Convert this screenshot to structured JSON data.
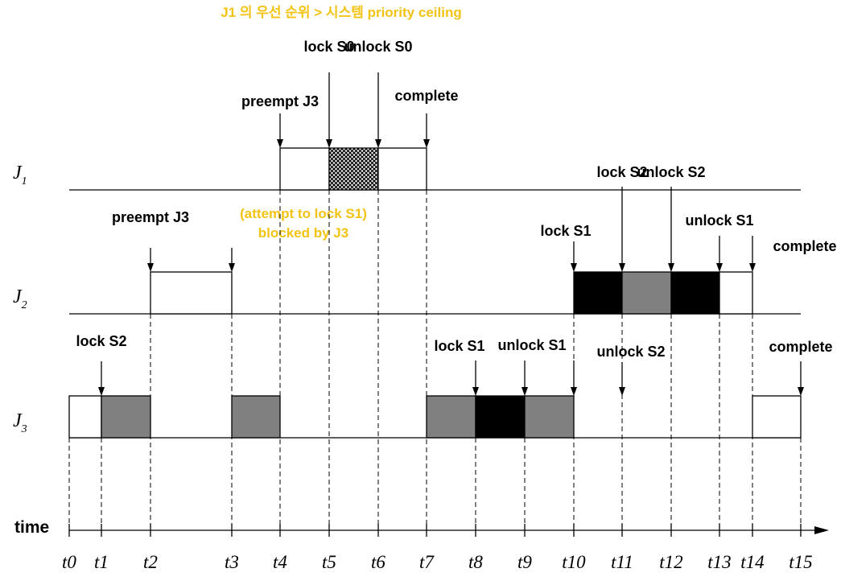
{
  "header_note": "J1 의 우선 순위 > 시스템 priority ceiling",
  "blocked_note": [
    "(attempt to lock S1)",
    "blocked by J3"
  ],
  "jobs": [
    {
      "name": "J",
      "sub": "1"
    },
    {
      "name": "J",
      "sub": "2"
    },
    {
      "name": "J",
      "sub": "3"
    }
  ],
  "time_label": "time",
  "ticks": [
    "t0",
    "t1",
    "t2",
    "t3",
    "t4",
    "t5",
    "t6",
    "t7",
    "t8",
    "t9",
    "t10",
    "t11",
    "t12",
    "t13",
    "t14",
    "t15"
  ],
  "colors": {
    "lock_s2": "#808080",
    "lock_s1": "#000000",
    "lock_s0": "crosshatch",
    "note": "#f2c314"
  },
  "segments": [
    {
      "job": "J1",
      "from": 4,
      "to": 5,
      "fill": "white"
    },
    {
      "job": "J1",
      "from": 5,
      "to": 6,
      "fill": "crosshatch"
    },
    {
      "job": "J1",
      "from": 6,
      "to": 7,
      "fill": "white"
    },
    {
      "job": "J2",
      "from": 2,
      "to": 3,
      "fill": "white"
    },
    {
      "job": "J2",
      "from": 10,
      "to": 11,
      "fill": "black"
    },
    {
      "job": "J2",
      "from": 11,
      "to": 12,
      "fill": "gray"
    },
    {
      "job": "J2",
      "from": 12,
      "to": 13,
      "fill": "black"
    },
    {
      "job": "J2",
      "from": 13,
      "to": 14,
      "fill": "white"
    },
    {
      "job": "J3",
      "from": 0,
      "to": 1,
      "fill": "white"
    },
    {
      "job": "J3",
      "from": 1,
      "to": 2,
      "fill": "gray"
    },
    {
      "job": "J3",
      "from": 3,
      "to": 4,
      "fill": "gray"
    },
    {
      "job": "J3",
      "from": 7,
      "to": 8,
      "fill": "gray"
    },
    {
      "job": "J3",
      "from": 8,
      "to": 9,
      "fill": "black"
    },
    {
      "job": "J3",
      "from": 9,
      "to": 10,
      "fill": "gray"
    },
    {
      "job": "J3",
      "from": 14,
      "to": 15,
      "fill": "white"
    }
  ],
  "events": [
    {
      "job": "J1",
      "at": 4,
      "label": "preempt J3"
    },
    {
      "job": "J1",
      "at": 5,
      "label": "lock S0"
    },
    {
      "job": "J1",
      "at": 6,
      "label": "unlock S0"
    },
    {
      "job": "J1",
      "at": 7,
      "label": "complete"
    },
    {
      "job": "J2",
      "at": 2,
      "label": "preempt J3"
    },
    {
      "job": "J2",
      "at": 3,
      "label": ""
    },
    {
      "job": "J2",
      "at": 10,
      "label": "lock S1"
    },
    {
      "job": "J2",
      "at": 11,
      "label": "lock S2"
    },
    {
      "job": "J2",
      "at": 12,
      "label": "unlock S2"
    },
    {
      "job": "J2",
      "at": 13,
      "label": "unlock S1"
    },
    {
      "job": "J2",
      "at": 14,
      "label": "complete"
    },
    {
      "job": "J3",
      "at": 1,
      "label": "lock S2"
    },
    {
      "job": "J3",
      "at": 8,
      "label": "lock S1"
    },
    {
      "job": "J3",
      "at": 9,
      "label": "unlock S1"
    },
    {
      "job": "J3",
      "at": 10,
      "label": ""
    },
    {
      "job": "J3",
      "at": 11,
      "label": "unlock S2"
    },
    {
      "job": "J3",
      "at": 15,
      "label": "complete"
    }
  ]
}
